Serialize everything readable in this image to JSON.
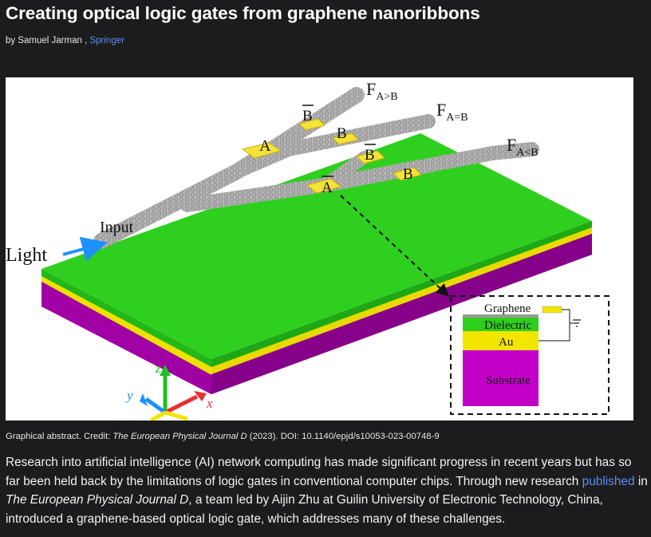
{
  "article": {
    "title": "Creating optical logic gates from graphene nanoribbons",
    "byline_prefix": "by Samuel Jarman , ",
    "byline_source": "Springer"
  },
  "figure": {
    "labels": {
      "light": "Light",
      "input": "Input",
      "f_main": "F",
      "f_gt_sub": "A>B",
      "f_eq_sub": "A=B",
      "f_lt_sub": "A<B",
      "gate_a": "A",
      "gate_b": "B",
      "gate_a_bar": "A",
      "gate_b_bar": "B"
    },
    "inset": {
      "graphene": "Graphene",
      "dielectric": "Dielectric",
      "au": "Au",
      "substrate": "Substrate"
    },
    "axes": {
      "x": "x",
      "y": "y",
      "z": "z"
    },
    "colors": {
      "green": "#2fcf1f",
      "yellow": "#f2e600",
      "magenta": "#b300b3",
      "gray_ribbon": "#a8a8a8",
      "gate_yellow": "#f5e23a"
    }
  },
  "caption": {
    "prefix": "Graphical abstract. Credit: ",
    "journal": "The European Physical Journal D",
    "suffix": " (2023). DOI: 10.1140/epjd/s10053-023-00748-9"
  },
  "body": {
    "part1": "Research into artificial intelligence (AI) network computing has made significant progress in recent years but has so far been held back by the limitations of logic gates in conventional computer chips. Through new research ",
    "link": "published",
    "part2": " in ",
    "journal": "The European Physical Journal D",
    "part3": ", a team led by Aijin Zhu at Guilin University of Electronic Technology, China, introduced a graphene-based optical logic gate, which addresses many of these challenges."
  }
}
